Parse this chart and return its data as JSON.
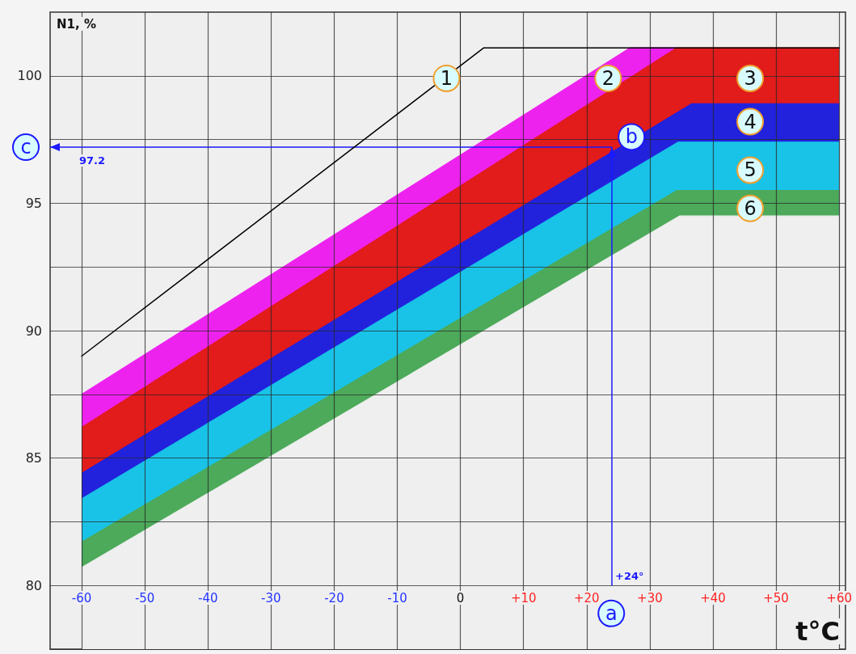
{
  "chart_data": {
    "type": "area",
    "xlabel": "t°C",
    "ylabel": "N1, %",
    "xlim": [
      -65,
      61
    ],
    "ylim": [
      77.5,
      102.5
    ],
    "xticks": [
      -60,
      -50,
      -40,
      -30,
      -20,
      -10,
      0,
      {
        "value": 10,
        "label": "+10"
      },
      {
        "value": 20,
        "label": "+20"
      },
      {
        "value": 30,
        "label": "+30"
      },
      {
        "value": 40,
        "label": "+40"
      },
      {
        "value": 50,
        "label": "+50"
      },
      {
        "value": 60,
        "label": "+60"
      }
    ],
    "yticks": [
      80,
      {
        "value": 82.5,
        "label": null
      },
      85,
      {
        "value": 87.5,
        "label": null
      },
      90,
      {
        "value": 92.5,
        "label": null
      },
      95,
      {
        "value": 97.5,
        "label": null
      },
      100
    ],
    "grid": true,
    "marker": "none",
    "series": [
      {
        "type": "line",
        "color": "#000000",
        "x": [
          -60,
          3.7,
          60
        ],
        "values": [
          89.0,
          101.1,
          101.1
        ]
      },
      {
        "color": "#ee22ee",
        "x": [
          -60,
          26.9,
          34.3
        ],
        "values": [
          87.5,
          101.1,
          101.1
        ]
      },
      {
        "color": "#e21b1b",
        "x": [
          -60,
          34.3,
          60
        ],
        "values": [
          86.2,
          101.1,
          101.1
        ]
      },
      {
        "color": "#2222dd",
        "x": [
          -60,
          36.6,
          60
        ],
        "values": [
          84.4,
          98.9,
          98.9
        ]
      },
      {
        "color": "#19c3e8",
        "x": [
          -60,
          34.5,
          60
        ],
        "values": [
          83.4,
          97.4,
          97.4
        ]
      },
      {
        "color": "#4caa5a",
        "x": [
          -60,
          34.3,
          60
        ],
        "values": [
          81.7,
          95.5,
          95.5
        ]
      },
      {
        "color": "#efefef",
        "x": [
          -60,
          34.7,
          60
        ],
        "values": [
          80.7,
          94.5,
          94.5
        ]
      }
    ],
    "ref_lines": [
      {
        "axis": "x",
        "value": 24,
        "label": "+24°",
        "color": "#1a1aff"
      },
      {
        "axis": "y",
        "value": 97.2,
        "label": "97.2",
        "color": "#1a1aff"
      }
    ],
    "annotations": [
      {
        "text": "1",
        "x": -2.2,
        "y": 99.9
      },
      {
        "text": "2",
        "x": 23.4,
        "y": 99.9
      },
      {
        "text": "3",
        "x": 45.9,
        "y": 99.9
      },
      {
        "text": "4",
        "x": 45.9,
        "y": 98.2
      },
      {
        "text": "5",
        "x": 45.9,
        "y": 96.3
      },
      {
        "text": "6",
        "x": 45.9,
        "y": 94.8
      },
      {
        "text": "a",
        "x": 23.9,
        "y": 78.9
      },
      {
        "text": "b",
        "x": 27.1,
        "y": 97.6
      },
      "c"
    ]
  }
}
